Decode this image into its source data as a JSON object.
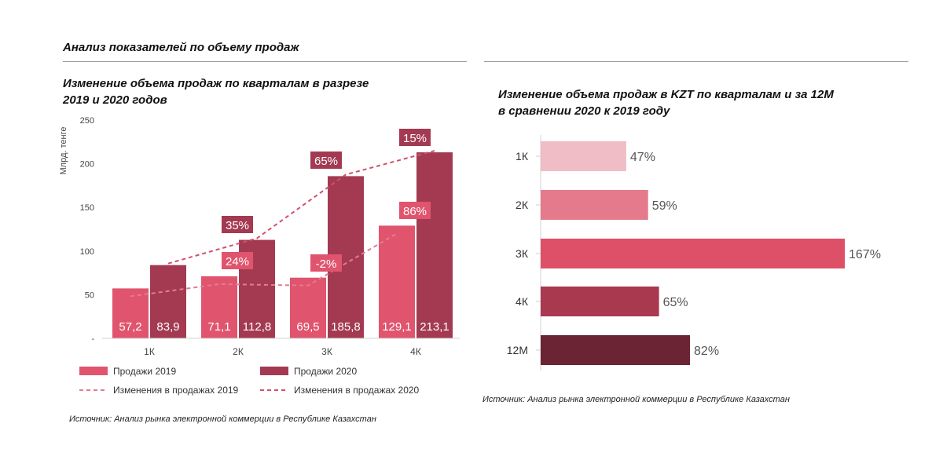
{
  "section_title": "Анализ показателей по объему продаж",
  "colors": {
    "sales_2019": "#e0546e",
    "sales_2020": "#a33a52",
    "bar_1k": "#f0bcc6",
    "bar_2k": "#e47a8c",
    "bar_3k": "#dd5068",
    "bar_4k": "#a8394f",
    "bar_12m": "#6b2433"
  },
  "left_chart": {
    "title_line1": "Изменение объема продаж по кварталам в разрезе",
    "title_line2": "2019 и 2020 годов",
    "source": "Источник: Анализ рынка электронной коммерции в Республике Казахстан"
  },
  "right_chart": {
    "title_line1": "Изменение объема продаж в KZT по кварталам и за 12М",
    "title_line2": "в сравнении 2020 к 2019 году",
    "source": "Источник: Анализ рынка электронной коммерции в Республике Казахстан"
  },
  "chart_data": [
    {
      "type": "bar",
      "categories": [
        "1К",
        "2К",
        "3К",
        "4К"
      ],
      "ylabel": "Млрд. тенге",
      "ylim": [
        0,
        250
      ],
      "yticks": [
        0,
        50,
        100,
        150,
        200,
        250
      ],
      "ytick_labels": [
        "-",
        "50",
        "100",
        "150",
        "200",
        "250"
      ],
      "series": [
        {
          "name": "Продажи 2019",
          "values": [
            57.2,
            71.1,
            69.5,
            129.1
          ],
          "labels": [
            "57,2",
            "71,1",
            "69,5",
            "129,1"
          ]
        },
        {
          "name": "Продажи 2020",
          "values": [
            83.9,
            112.8,
            185.8,
            213.1
          ],
          "labels": [
            "83,9",
            "112,8",
            "185,8",
            "213,1"
          ]
        }
      ],
      "change_series": [
        {
          "name": "Изменения  в продажах 2019",
          "labels": [
            "24%",
            "-2%",
            "86%"
          ]
        },
        {
          "name": "Изменения  в продажах 2020",
          "labels": [
            "35%",
            "65%",
            "15%"
          ]
        }
      ],
      "legend": "bottom"
    },
    {
      "type": "bar",
      "orientation": "horizontal",
      "categories": [
        "1К",
        "2К",
        "3К",
        "4К",
        "12М"
      ],
      "values": [
        47,
        59,
        167,
        65,
        82
      ],
      "labels": [
        "47%",
        "59%",
        "167%",
        "65%",
        "82%"
      ]
    }
  ]
}
